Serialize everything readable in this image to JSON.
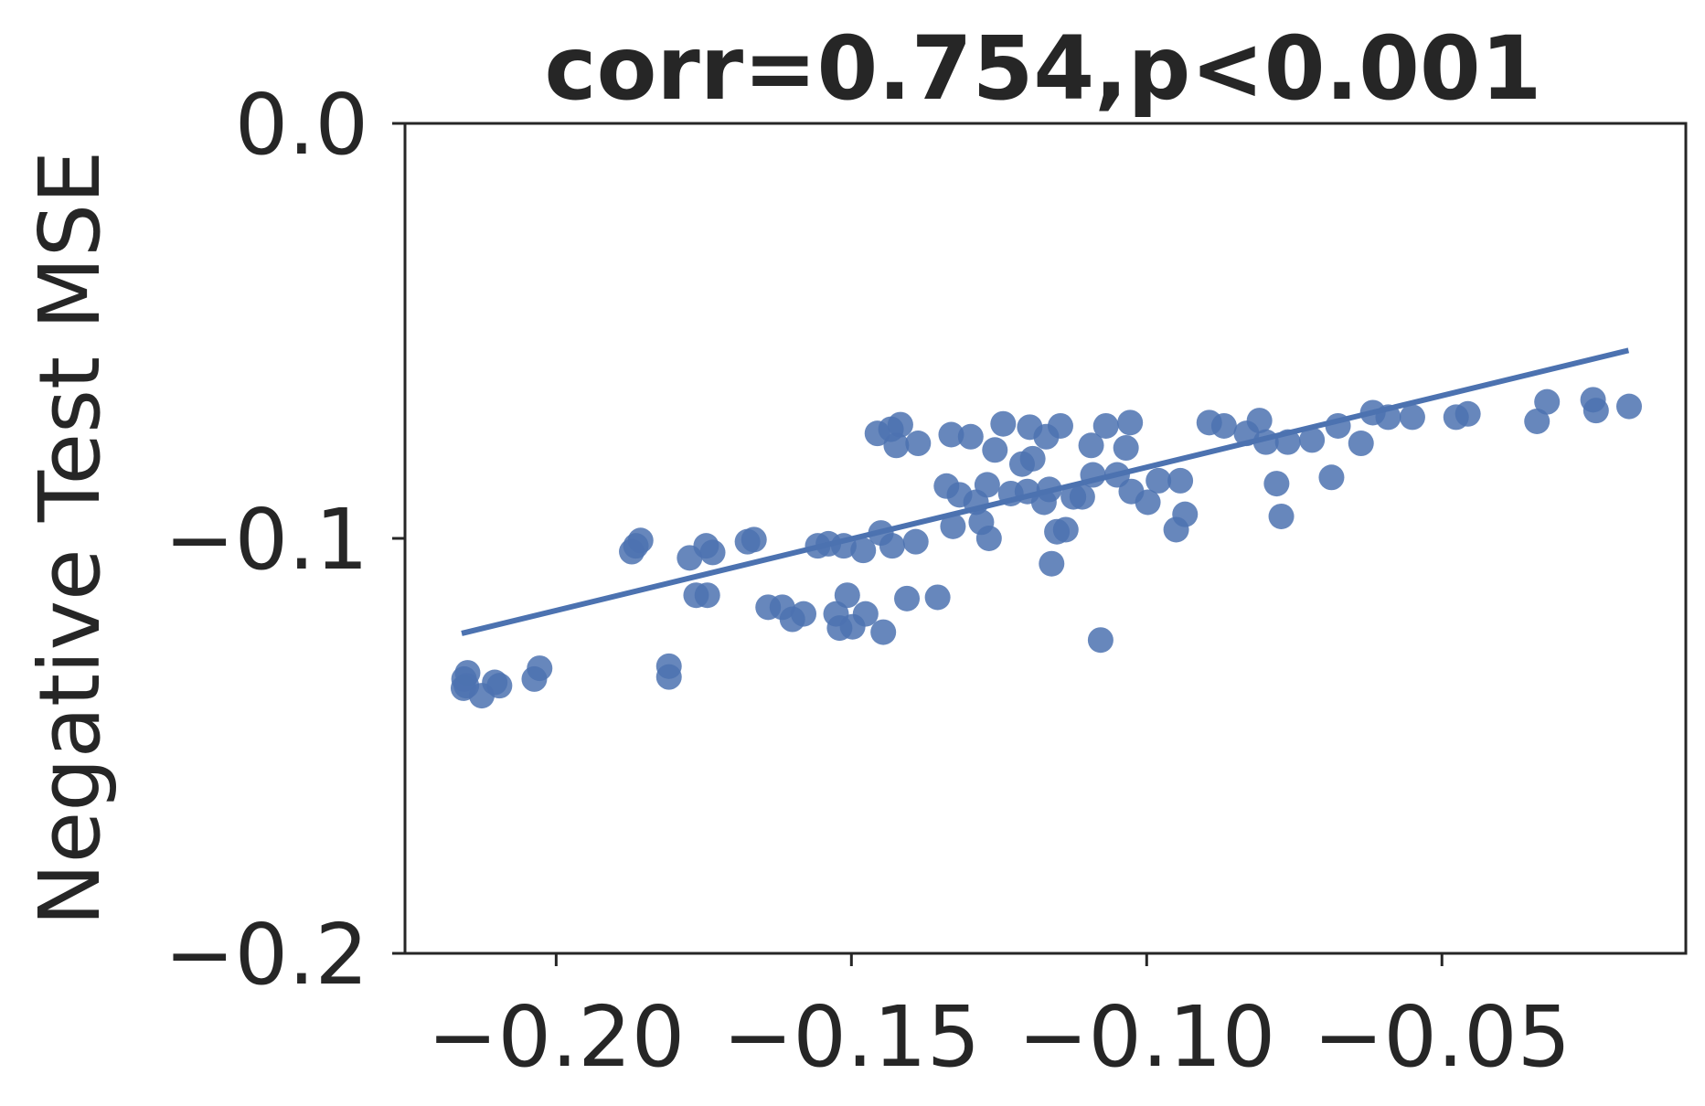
{
  "chart_data": {
    "type": "scatter",
    "title": "corr=0.754,p<0.001",
    "y_label": "Negative Test MSE",
    "color": "#4c72b0",
    "xlim": [
      -0.2256,
      -0.0087
    ],
    "ylim": [
      -0.2,
      0.0
    ],
    "xticks": [
      {
        "value": -0.2,
        "label": "−0.20"
      },
      {
        "value": -0.15,
        "label": "−0.15"
      },
      {
        "value": -0.1,
        "label": "−0.10"
      },
      {
        "value": -0.05,
        "label": "−0.05"
      }
    ],
    "yticks": [
      {
        "value": -0.2,
        "label": "−0.2"
      },
      {
        "value": -0.1,
        "label": "−0.1"
      },
      {
        "value": 0.0,
        "label": "0.0"
      }
    ],
    "x": [
      -0.2156,
      -0.2152,
      -0.2157,
      -0.215,
      -0.2126,
      -0.2104,
      -0.2096,
      -0.2037,
      -0.2028,
      -0.1872,
      -0.1865,
      -0.1857,
      -0.1809,
      -0.1809,
      -0.1774,
      -0.1763,
      -0.1744,
      -0.1746,
      -0.1735,
      -0.1676,
      -0.1665,
      -0.1641,
      -0.1617,
      -0.16,
      -0.1581,
      -0.1557,
      -0.1539,
      -0.1526,
      -0.1507,
      -0.152,
      -0.1498,
      -0.1513,
      -0.1476,
      -0.1446,
      -0.148,
      -0.145,
      -0.1431,
      -0.1456,
      -0.1433,
      -0.1424,
      -0.1417,
      -0.1387,
      -0.1391,
      -0.1406,
      -0.1354,
      -0.1339,
      -0.1328,
      -0.1331,
      -0.1298,
      -0.1317,
      -0.1289,
      -0.128,
      -0.127,
      -0.1267,
      -0.1257,
      -0.1243,
      -0.123,
      -0.1211,
      -0.1202,
      -0.1198,
      -0.1193,
      -0.1174,
      -0.117,
      -0.1165,
      -0.1161,
      -0.1152,
      -0.1137,
      -0.1146,
      -0.1124,
      -0.1109,
      -0.1094,
      -0.1091,
      -0.1078,
      -0.1069,
      -0.105,
      -0.1035,
      -0.1028,
      -0.1026,
      -0.0998,
      -0.098,
      -0.095,
      -0.0943,
      -0.0935,
      -0.0894,
      -0.0869,
      -0.0831,
      -0.0809,
      -0.0798,
      -0.078,
      -0.0772,
      -0.0761,
      -0.072,
      -0.0687,
      -0.0676,
      -0.0637,
      -0.0617,
      -0.0591,
      -0.055,
      -0.0476,
      -0.0456,
      -0.0339,
      -0.0322,
      -0.0244,
      -0.0239,
      -0.0183
    ],
    "y": [
      -0.1339,
      -0.1355,
      -0.1361,
      -0.1324,
      -0.1379,
      -0.1347,
      -0.1355,
      -0.1339,
      -0.1313,
      -0.1032,
      -0.1018,
      -0.1005,
      -0.1308,
      -0.1334,
      -0.1047,
      -0.1137,
      -0.1137,
      -0.1018,
      -0.1034,
      -0.1008,
      -0.1003,
      -0.1166,
      -0.1166,
      -0.1195,
      -0.1182,
      -0.1018,
      -0.1013,
      -0.1182,
      -0.1137,
      -0.1216,
      -0.1213,
      -0.1018,
      -0.1182,
      -0.1226,
      -0.1029,
      -0.0987,
      -0.1018,
      -0.0747,
      -0.0737,
      -0.0776,
      -0.0726,
      -0.0771,
      -0.1008,
      -0.1145,
      -0.1142,
      -0.0874,
      -0.0971,
      -0.075,
      -0.0755,
      -0.0895,
      -0.0913,
      -0.0961,
      -0.0871,
      -0.1,
      -0.0787,
      -0.0724,
      -0.0892,
      -0.0821,
      -0.0887,
      -0.0732,
      -0.0808,
      -0.0913,
      -0.0755,
      -0.0882,
      -0.1061,
      -0.0984,
      -0.0979,
      -0.0729,
      -0.09,
      -0.09,
      -0.0776,
      -0.0847,
      -0.1245,
      -0.0729,
      -0.0847,
      -0.0782,
      -0.0721,
      -0.0887,
      -0.0913,
      -0.0861,
      -0.0979,
      -0.0861,
      -0.0942,
      -0.0721,
      -0.0729,
      -0.0747,
      -0.0716,
      -0.0768,
      -0.0868,
      -0.0947,
      -0.0768,
      -0.0763,
      -0.0853,
      -0.0729,
      -0.0771,
      -0.0697,
      -0.0708,
      -0.0708,
      -0.0708,
      -0.07,
      -0.0718,
      -0.0671,
      -0.0666,
      -0.0692,
      -0.0682
    ],
    "regression": {
      "x": [
        -0.216,
        -0.0184
      ],
      "y": [
        -0.1229,
        -0.0547
      ]
    }
  }
}
